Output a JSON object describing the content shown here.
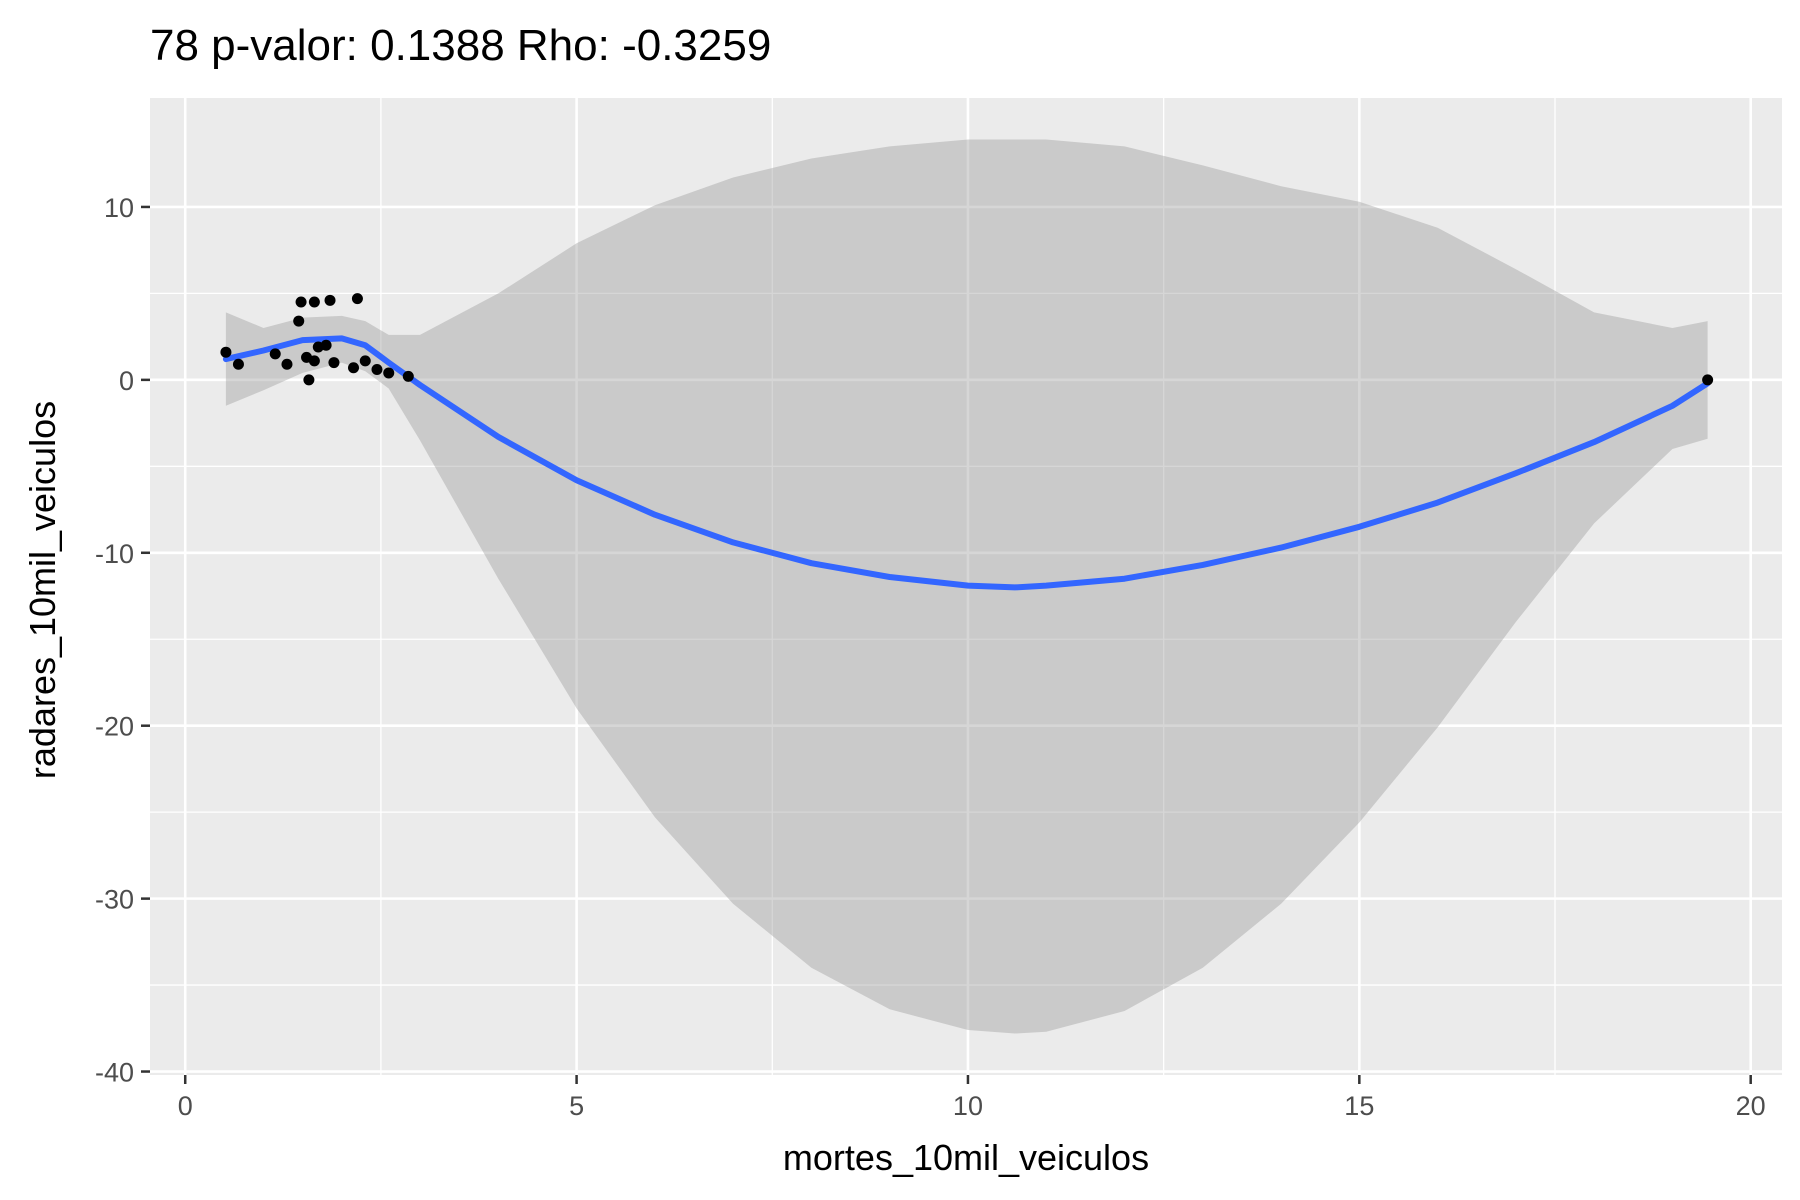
{
  "chart_data": {
    "type": "scatter",
    "title": "78 p-valor: 0.1388 Rho: -0.3259",
    "xlabel": "mortes_10mil_veiculos",
    "ylabel": "radares_10mil_veiculos",
    "xlim": [
      -0.45,
      20.4
    ],
    "ylim": [
      -40.2,
      16.3
    ],
    "x_ticks": [
      0,
      5,
      10,
      15,
      20
    ],
    "x_tick_labels": [
      "0",
      "5",
      "10",
      "15",
      "20"
    ],
    "y_ticks": [
      -40,
      -30,
      -20,
      -10,
      0,
      10
    ],
    "y_tick_labels": [
      "-40",
      "-30",
      "-20",
      "-10",
      "0",
      "10"
    ],
    "grid": true,
    "legend": "none",
    "colors": {
      "panel": "#ebebeb",
      "grid": "#ffffff",
      "points": "#000000",
      "smooth_line": "#3366ff",
      "confidence_band": "#999999"
    },
    "points": [
      {
        "x": 0.52,
        "y": 1.6
      },
      {
        "x": 0.68,
        "y": 0.9
      },
      {
        "x": 1.15,
        "y": 1.5
      },
      {
        "x": 1.3,
        "y": 0.9
      },
      {
        "x": 1.45,
        "y": 3.4
      },
      {
        "x": 1.48,
        "y": 4.5
      },
      {
        "x": 1.55,
        "y": 1.3
      },
      {
        "x": 1.58,
        "y": 0.0
      },
      {
        "x": 1.65,
        "y": 4.5
      },
      {
        "x": 1.65,
        "y": 1.1
      },
      {
        "x": 1.7,
        "y": 1.9
      },
      {
        "x": 1.8,
        "y": 2.0
      },
      {
        "x": 1.85,
        "y": 4.6
      },
      {
        "x": 1.9,
        "y": 1.0
      },
      {
        "x": 2.15,
        "y": 0.7
      },
      {
        "x": 2.2,
        "y": 4.7
      },
      {
        "x": 2.3,
        "y": 1.1
      },
      {
        "x": 2.45,
        "y": 0.6
      },
      {
        "x": 2.6,
        "y": 0.4
      },
      {
        "x": 2.85,
        "y": 0.2
      },
      {
        "x": 19.45,
        "y": 0.0
      }
    ],
    "smooth": {
      "x": [
        0.52,
        1.0,
        1.5,
        2.0,
        2.3,
        2.6,
        3.0,
        4.0,
        5.0,
        6.0,
        7.0,
        8.0,
        9.0,
        10.0,
        10.6,
        11.0,
        12.0,
        13.0,
        14.0,
        15.0,
        16.0,
        17.0,
        18.0,
        19.0,
        19.45
      ],
      "y": [
        1.2,
        1.7,
        2.3,
        2.4,
        2.0,
        1.0,
        -0.3,
        -3.3,
        -5.8,
        -7.8,
        -9.4,
        -10.6,
        -11.4,
        -11.9,
        -12.0,
        -11.9,
        -11.5,
        -10.7,
        -9.7,
        -8.5,
        -7.1,
        -5.4,
        -3.6,
        -1.5,
        -0.2
      ],
      "lower": [
        -1.5,
        -0.6,
        0.4,
        1.0,
        0.5,
        -0.5,
        -3.5,
        -11.5,
        -19.0,
        -25.3,
        -30.3,
        -34.0,
        -36.4,
        -37.6,
        -37.8,
        -37.7,
        -36.5,
        -34.0,
        -30.3,
        -25.6,
        -20.1,
        -14.0,
        -8.3,
        -4.0,
        -3.4
      ],
      "upper": [
        3.9,
        3.0,
        3.6,
        3.7,
        3.4,
        2.6,
        2.6,
        5.0,
        7.9,
        10.1,
        11.7,
        12.8,
        13.5,
        13.9,
        13.9,
        13.9,
        13.5,
        12.4,
        11.2,
        10.3,
        8.8,
        6.4,
        3.9,
        3.0,
        3.4
      ]
    }
  }
}
